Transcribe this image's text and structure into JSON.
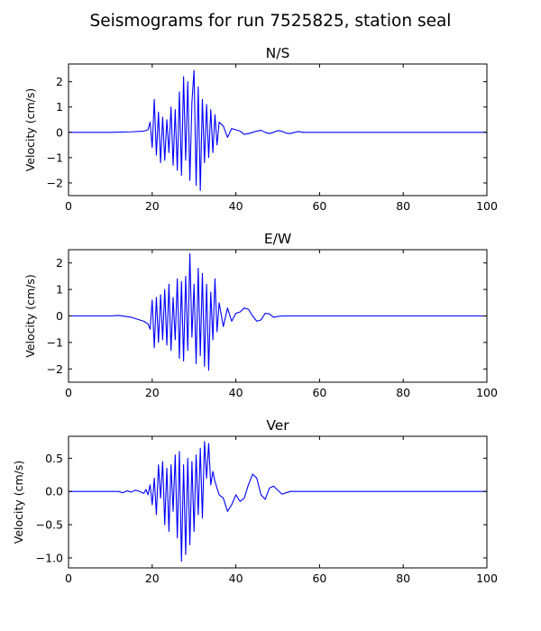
{
  "figure": {
    "title": "Seismograms for run 7525825, station seal"
  },
  "chart_data": [
    {
      "type": "line",
      "title": "N/S",
      "xlabel": "",
      "ylabel": "Velocity (cm/s)",
      "xlim": [
        0,
        100
      ],
      "ylim": [
        -2.5,
        2.7
      ],
      "xticks": [
        0,
        20,
        40,
        60,
        80,
        100
      ],
      "yticks": [
        -2,
        -1,
        0,
        1,
        2
      ],
      "ytick_labels": [
        "−2",
        "−1",
        "0",
        "1",
        "2"
      ],
      "grid": false,
      "series": [
        {
          "color": "#0000ff",
          "x": [
            0,
            10,
            15,
            18,
            19,
            19.5,
            20,
            20.5,
            21,
            21.5,
            22,
            22.5,
            23,
            23.5,
            24,
            24.5,
            25,
            25.5,
            26,
            26.5,
            27,
            27.5,
            28,
            28.5,
            29,
            29.5,
            30,
            30.5,
            31,
            31.5,
            32,
            32.5,
            33,
            33.5,
            34,
            34.5,
            35,
            35.5,
            36,
            37,
            38,
            39,
            40,
            41,
            42,
            43,
            44,
            45,
            46,
            47,
            48,
            49,
            50,
            51,
            52,
            53,
            54,
            55,
            56,
            58,
            60,
            70,
            80,
            90,
            100
          ],
          "y": [
            0,
            0,
            0.02,
            0.05,
            0.1,
            0.4,
            -0.6,
            1.3,
            -0.9,
            0.8,
            -1.2,
            0.6,
            -1.1,
            0.5,
            -0.8,
            1.0,
            -1.3,
            0.9,
            -1.5,
            1.6,
            -1.7,
            2.2,
            -1.1,
            2.0,
            -1.9,
            1.2,
            2.45,
            -2.1,
            1.8,
            -2.3,
            1.3,
            -1.2,
            1.1,
            -1.0,
            0.9,
            -0.8,
            0.7,
            -0.5,
            0.4,
            0.25,
            -0.2,
            0.15,
            0.1,
            0.05,
            -0.08,
            -0.05,
            0.0,
            0.05,
            0.08,
            0.0,
            -0.05,
            0.0,
            0.07,
            0.04,
            -0.03,
            -0.05,
            0.0,
            0.03,
            0.0,
            0.0,
            0.0,
            0.0,
            0.0,
            0.0,
            0.0
          ]
        }
      ]
    },
    {
      "type": "line",
      "title": "E/W",
      "xlabel": "",
      "ylabel": "Velocity (cm/s)",
      "xlim": [
        0,
        100
      ],
      "ylim": [
        -2.5,
        2.5
      ],
      "xticks": [
        0,
        20,
        40,
        60,
        80,
        100
      ],
      "yticks": [
        -2,
        -1,
        0,
        1,
        2
      ],
      "ytick_labels": [
        "−2",
        "−1",
        "0",
        "1",
        "2"
      ],
      "grid": false,
      "series": [
        {
          "color": "#0000ff",
          "x": [
            0,
            10,
            12,
            15,
            18,
            19,
            19.5,
            20,
            20.5,
            21,
            21.5,
            22,
            22.5,
            23,
            23.5,
            24,
            24.5,
            25,
            25.5,
            26,
            26.5,
            27,
            27.5,
            28,
            28.5,
            29,
            29.5,
            30,
            30.5,
            31,
            31.5,
            32,
            32.5,
            33,
            33.5,
            34,
            34.5,
            35,
            35.5,
            36,
            37,
            38,
            39,
            40,
            41,
            42,
            43,
            44,
            45,
            46,
            47,
            48,
            49,
            50,
            51,
            52,
            53,
            54,
            55,
            56,
            58,
            60,
            70,
            80,
            90,
            100
          ],
          "y": [
            0,
            0,
            0.02,
            -0.05,
            -0.2,
            -0.3,
            -0.5,
            0.6,
            -1.2,
            0.7,
            -1.0,
            0.8,
            -0.9,
            1.0,
            -1.1,
            1.2,
            -1.3,
            0.7,
            -0.9,
            1.4,
            -1.6,
            1.3,
            -1.7,
            1.5,
            -1.3,
            2.35,
            -0.8,
            1.2,
            -1.8,
            1.8,
            -1.5,
            1.6,
            -1.9,
            1.2,
            -2.05,
            0.9,
            -0.9,
            1.4,
            -0.6,
            0.5,
            -0.4,
            0.3,
            -0.2,
            0.1,
            0.15,
            0.3,
            0.25,
            0.0,
            -0.2,
            -0.15,
            0.1,
            0.08,
            -0.05,
            -0.02,
            0.0,
            0.0,
            0.0,
            0.0,
            0.0,
            0.0,
            0.0,
            0.0,
            0.0,
            0.0,
            0.0,
            0.0
          ]
        }
      ]
    },
    {
      "type": "line",
      "title": "Ver",
      "xlabel": "",
      "ylabel": "Velocity (cm/s)",
      "xlim": [
        0,
        100
      ],
      "ylim": [
        -1.15,
        0.83
      ],
      "xticks": [
        0,
        20,
        40,
        60,
        80,
        100
      ],
      "yticks": [
        -1.0,
        -0.5,
        0.0,
        0.5
      ],
      "ytick_labels": [
        "−1.0",
        "−0.5",
        "0.0",
        "0.5"
      ],
      "grid": false,
      "series": [
        {
          "color": "#0000ff",
          "x": [
            0,
            10,
            12,
            13,
            14,
            15,
            16,
            17,
            18,
            18.5,
            19,
            19.5,
            20,
            20.5,
            21,
            21.5,
            22,
            22.5,
            23,
            23.5,
            24,
            24.5,
            25,
            25.5,
            26,
            26.5,
            27,
            27.5,
            28,
            28.5,
            29,
            29.5,
            30,
            30.5,
            31,
            31.5,
            32,
            32.5,
            33,
            33.5,
            34,
            34.5,
            35,
            36,
            37,
            38,
            39,
            40,
            41,
            42,
            43,
            44,
            45,
            46,
            47,
            48,
            49,
            50,
            51,
            52,
            53,
            54,
            55,
            56,
            58,
            60,
            70,
            80,
            90,
            100
          ],
          "y": [
            0,
            0,
            0.0,
            -0.02,
            0.01,
            -0.01,
            0.02,
            0.0,
            -0.03,
            0.03,
            -0.05,
            0.1,
            -0.2,
            0.2,
            -0.35,
            0.4,
            -0.1,
            0.45,
            -0.5,
            0.35,
            -0.6,
            0.4,
            -0.3,
            0.55,
            -0.7,
            0.6,
            -1.05,
            0.4,
            -0.95,
            0.5,
            -0.8,
            0.45,
            -0.6,
            0.55,
            -0.35,
            0.65,
            -0.4,
            0.75,
            0.2,
            0.72,
            0.1,
            0.3,
            0.15,
            -0.05,
            -0.1,
            -0.3,
            -0.2,
            -0.05,
            -0.15,
            -0.1,
            0.1,
            0.26,
            0.2,
            -0.05,
            -0.12,
            0.05,
            0.08,
            0.02,
            -0.04,
            -0.02,
            0.0,
            0.0,
            0.0,
            0.0,
            0.0,
            0.0,
            0.0,
            0.0,
            0.0,
            0.0
          ]
        }
      ]
    }
  ]
}
